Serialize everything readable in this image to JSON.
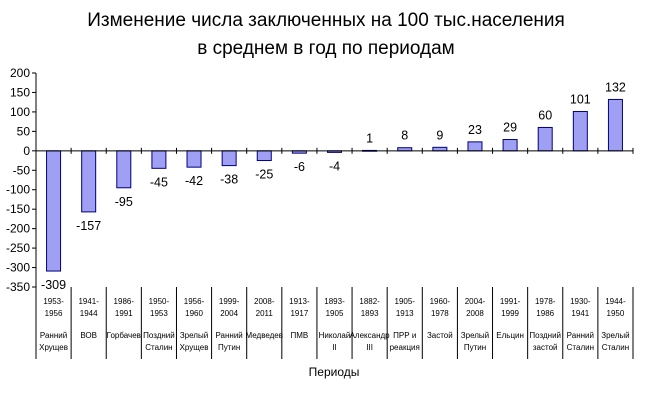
{
  "chart_data": {
    "type": "bar",
    "title_lines": [
      "Изменение числа заключенных на 100 тыс.населения",
      "в среднем в год по периодам"
    ],
    "xlabel": "Периоды",
    "ylabel": "",
    "ylim": [
      -350,
      200
    ],
    "yticks": [
      200,
      150,
      100,
      50,
      0,
      -50,
      -100,
      -150,
      -200,
      -250,
      -300,
      -350
    ],
    "grid": false,
    "bar_color": "#9f9ff4",
    "bar_edge_color": "#00007a",
    "categories": [
      {
        "period": "1953-1956",
        "name": [
          "Ранний",
          "Хрущев"
        ]
      },
      {
        "period": "1941-1944",
        "name": [
          "ВОВ"
        ]
      },
      {
        "period": "1986-1991",
        "name": [
          "Горбачев"
        ]
      },
      {
        "period": "1950-1953",
        "name": [
          "Поздний",
          "Сталин"
        ]
      },
      {
        "period": "1956-1960",
        "name": [
          "Зрелый",
          "Хрущев"
        ]
      },
      {
        "period": "1999-2004",
        "name": [
          "Ранний",
          "Путин"
        ]
      },
      {
        "period": "2008-2011",
        "name": [
          "Медведев"
        ]
      },
      {
        "period": "1913-1917",
        "name": [
          "ПМВ"
        ]
      },
      {
        "period": "1893-1905",
        "name": [
          "Николай",
          "II"
        ]
      },
      {
        "period": "1882-1893",
        "name": [
          "Александр",
          "III"
        ]
      },
      {
        "period": "1905-1913",
        "name": [
          "ПРР и",
          "реакция"
        ]
      },
      {
        "period": "1960-1978",
        "name": [
          "Застой"
        ]
      },
      {
        "period": "2004-2008",
        "name": [
          "Зрелый",
          "Путин"
        ]
      },
      {
        "period": "1991-1999",
        "name": [
          "Ельцин"
        ]
      },
      {
        "period": "1978-1986",
        "name": [
          "Поздний",
          "застой"
        ]
      },
      {
        "period": "1930-1941",
        "name": [
          "Ранний",
          "Сталин"
        ]
      },
      {
        "period": "1944-1950",
        "name": [
          "Зрелый",
          "Сталин"
        ]
      }
    ],
    "values": [
      -309,
      -157,
      -95,
      -45,
      -42,
      -38,
      -25,
      -6,
      -4,
      1,
      8,
      9,
      23,
      29,
      60,
      101,
      132
    ]
  }
}
